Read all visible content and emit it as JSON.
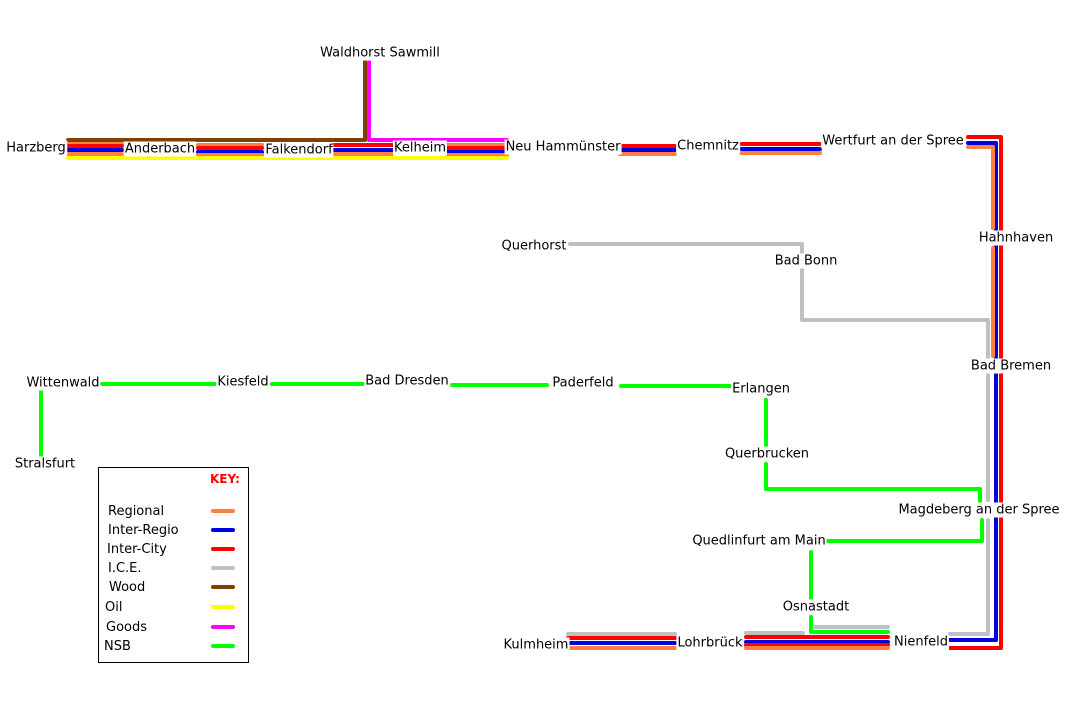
{
  "colors": {
    "Regional": "#ff8040",
    "Inter-Regio": "#0000e0",
    "Inter-City": "#ff0000",
    "I.C.E.": "#c0c0c0",
    "Wood": "#804000",
    "Oil": "#ffff00",
    "Goods": "#ff00ff",
    "NSB": "#00ff00"
  },
  "stations": {
    "waldhorst": "Waldhorst Sawmill",
    "harzberg": "Harzberg",
    "anderbach": "Anderbach",
    "falkendorf": "Falkendorf",
    "kelheim": "Kelheim",
    "neuhammunster": "Neu Hammünster",
    "chemnitz": "Chemnitz",
    "wertfurt": "Wertfurt an der Spree",
    "hahnhaven": "Hahnhaven",
    "querhorst": "Querhorst",
    "badbonn": "Bad Bonn",
    "badbremen": "Bad Bremen",
    "wittenwald": "Wittenwald",
    "kiesfeld": "Kiesfeld",
    "baddresden": "Bad Dresden",
    "paderfeld": "Paderfeld",
    "erlangen": "Erlangen",
    "stralsfurt": "Stralsfurt",
    "querbrucken": "Querbrucken",
    "magdeberg": "Magdeberg an der Spree",
    "quedlinfurt": "Quedlinfurt am Main",
    "osnastadt": "Osnastadt",
    "kulmheim": "Kulmheim",
    "lohrbruck": "Lohrbrück",
    "nienfeld": "Nienfeld"
  },
  "key": {
    "title": "KEY:",
    "items": [
      {
        "label": "Regional",
        "line": "Regional"
      },
      {
        "label": "Inter-Regio",
        "line": "Inter-Regio"
      },
      {
        "label": "Inter-City",
        "line": "Inter-City"
      },
      {
        "label": "I.C.E.",
        "line": "I.C.E."
      },
      {
        "label": "Wood",
        "line": "Wood"
      },
      {
        "label": "Oil",
        "line": "Oil"
      },
      {
        "label": "Goods",
        "line": "Goods"
      },
      {
        "label": "NSB",
        "line": "NSB"
      }
    ]
  }
}
